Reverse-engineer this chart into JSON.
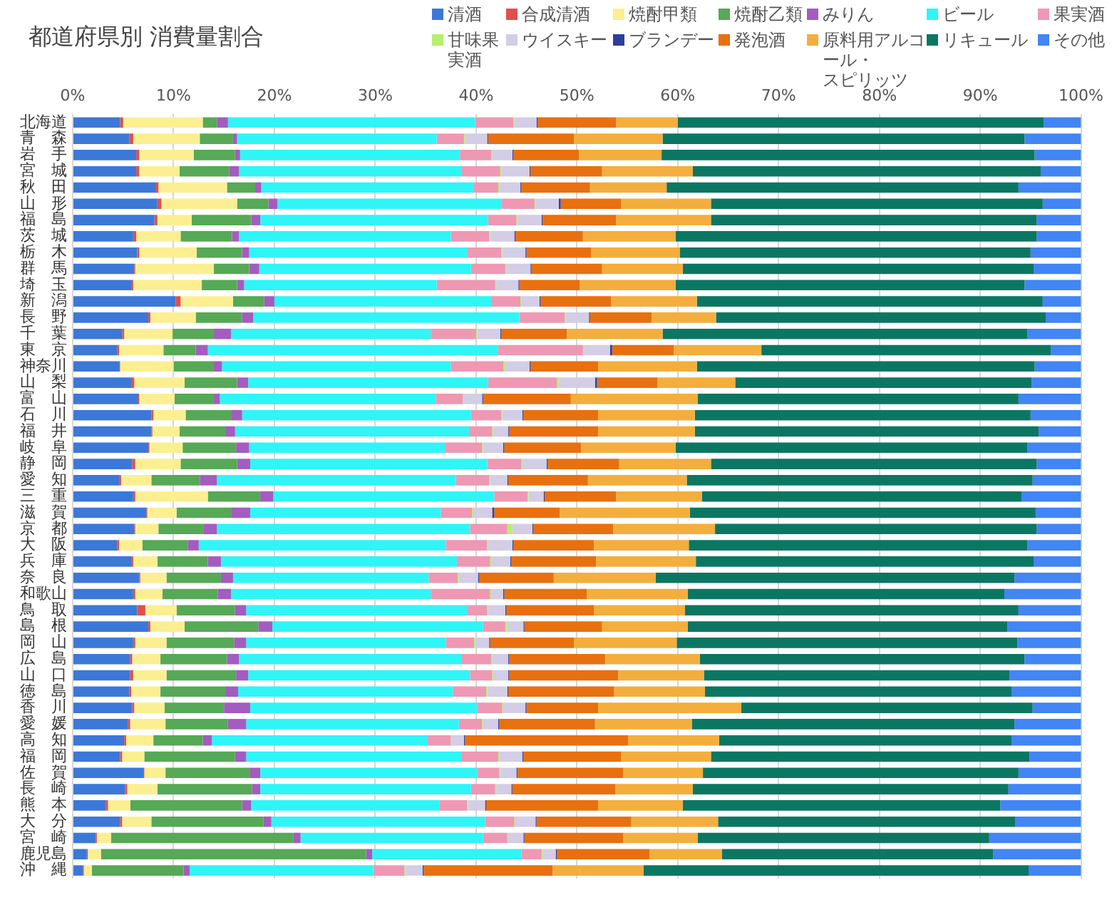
{
  "chart_data": {
    "type": "bar",
    "title": "都道府県別 消費量割合",
    "orientation": "horizontal",
    "stacked": true,
    "categories": [
      "北海道",
      "青　森",
      "岩　手",
      "宮　城",
      "秋　田",
      "山　形",
      "福　島",
      "茨　城",
      "栃　木",
      "群　馬",
      "埼　玉",
      "新　潟",
      "長　野",
      "千　葉",
      "東　京",
      "神奈川",
      "山　梨",
      "富　山",
      "石　川",
      "福　井",
      "岐　阜",
      "静　岡",
      "愛　知",
      "三　重",
      "滋　賀",
      "京　都",
      "大　阪",
      "兵　庫",
      "奈　良",
      "和歌山",
      "鳥　取",
      "島　根",
      "岡　山",
      "広　島",
      "山　口",
      "徳　島",
      "香　川",
      "愛　媛",
      "高　知",
      "福　岡",
      "佐　賀",
      "長　崎",
      "熊　本",
      "大　分",
      "宮　崎",
      "鹿児島",
      "沖　縄"
    ],
    "series": [
      {
        "name": "清酒",
        "color": "#3c78d8",
        "values": [
          4.7,
          5.6,
          6.3,
          6.3,
          8.2,
          8.4,
          8.1,
          6.0,
          6.4,
          6.1,
          5.8,
          10.2,
          7.5,
          4.9,
          4.4,
          4.6,
          5.8,
          6.5,
          7.8,
          7.8,
          7.5,
          5.9,
          4.6,
          6.0,
          7.3,
          6.1,
          4.4,
          5.8,
          6.6,
          6.0,
          6.4,
          7.5,
          6.0,
          5.7,
          5.7,
          5.6,
          5.9,
          5.5,
          5.1,
          4.7,
          7.0,
          5.2,
          3.3,
          4.7,
          2.3,
          1.4,
          1.0
        ]
      },
      {
        "name": "合成清酒",
        "color": "#e0504a",
        "values": [
          0.3,
          0.4,
          0.3,
          0.3,
          0.3,
          0.4,
          0.3,
          0.3,
          0.2,
          0.1,
          0.2,
          0.5,
          0.2,
          0.2,
          0.2,
          0.1,
          0.3,
          0.1,
          0.2,
          0.1,
          0.1,
          0.3,
          0.2,
          0.2,
          0.1,
          0.1,
          0.2,
          0.2,
          0.1,
          0.2,
          0.8,
          0.2,
          0.2,
          0.2,
          0.3,
          0.2,
          0.2,
          0.2,
          0.2,
          0.2,
          0.1,
          0.2,
          0.2,
          0.2,
          0.1,
          0.1,
          0.1
        ]
      },
      {
        "name": "焼酎甲類",
        "color": "#fcef91",
        "values": [
          7.9,
          6.6,
          5.4,
          4.0,
          6.8,
          7.5,
          3.4,
          4.4,
          5.7,
          7.8,
          6.8,
          5.2,
          4.5,
          4.8,
          4.4,
          5.3,
          5.0,
          3.5,
          3.2,
          2.7,
          3.3,
          4.5,
          3.0,
          7.2,
          2.9,
          2.3,
          2.3,
          2.4,
          2.6,
          2.7,
          3.1,
          3.4,
          3.1,
          2.8,
          3.3,
          2.9,
          3.0,
          3.5,
          2.7,
          2.2,
          2.1,
          3.0,
          2.2,
          2.9,
          1.4,
          1.3,
          0.8
        ]
      },
      {
        "name": "焼酎乙類",
        "color": "#56a956",
        "values": [
          1.4,
          3.3,
          4.1,
          4.9,
          2.8,
          3.1,
          5.9,
          5.1,
          4.5,
          3.5,
          3.5,
          3.1,
          4.6,
          4.1,
          3.2,
          4.0,
          5.2,
          3.9,
          4.5,
          4.6,
          5.3,
          5.6,
          4.8,
          5.2,
          5.4,
          4.5,
          4.5,
          5.0,
          5.4,
          5.5,
          5.8,
          7.3,
          6.7,
          6.6,
          6.9,
          6.5,
          5.9,
          6.2,
          4.9,
          9.0,
          8.4,
          9.4,
          11.1,
          11.1,
          18.1,
          26.3,
          9.1
        ]
      },
      {
        "name": "みりん",
        "color": "#a35cc0",
        "values": [
          1.1,
          0.4,
          0.5,
          1.0,
          0.6,
          0.9,
          0.9,
          0.7,
          0.7,
          1.0,
          0.7,
          1.0,
          1.1,
          1.7,
          1.2,
          0.8,
          1.1,
          0.6,
          1.1,
          0.9,
          1.3,
          1.3,
          1.7,
          1.3,
          1.9,
          1.3,
          1.1,
          1.3,
          1.2,
          1.3,
          1.1,
          1.4,
          1.2,
          1.2,
          1.2,
          1.2,
          2.6,
          1.8,
          0.9,
          1.1,
          1.0,
          0.8,
          0.9,
          0.8,
          0.7,
          0.6,
          0.6
        ]
      },
      {
        "name": "ビール",
        "color": "#2ff5f7",
        "values": [
          24.5,
          19.8,
          21.8,
          22.1,
          21.1,
          22.2,
          22.6,
          21.0,
          21.6,
          21.0,
          19.1,
          21.5,
          26.4,
          19.8,
          28.8,
          22.7,
          23.8,
          21.4,
          22.7,
          23.2,
          19.4,
          23.5,
          23.7,
          21.9,
          18.9,
          25.1,
          24.5,
          23.4,
          19.4,
          19.8,
          21.9,
          20.9,
          19.8,
          22.1,
          22.0,
          21.3,
          22.5,
          21.1,
          21.4,
          21.4,
          21.5,
          20.9,
          18.7,
          21.2,
          18.1,
          14.8,
          18.2
        ]
      },
      {
        "name": "果実酒",
        "color": "#ee98b4",
        "values": [
          3.8,
          2.7,
          3.1,
          3.8,
          2.4,
          3.3,
          2.8,
          3.8,
          3.4,
          3.4,
          5.8,
          2.9,
          4.5,
          4.5,
          8.4,
          5.2,
          6.8,
          2.7,
          3.0,
          2.3,
          3.7,
          3.4,
          3.3,
          3.3,
          3.1,
          3.7,
          4.1,
          3.3,
          2.9,
          5.9,
          2.0,
          2.2,
          2.8,
          2.9,
          2.2,
          3.3,
          2.5,
          2.3,
          2.3,
          3.6,
          2.2,
          2.4,
          2.7,
          2.9,
          2.4,
          2.0,
          3.1
        ]
      },
      {
        "name": "甘味果実酒",
        "color": "#b5ef6e",
        "values": [
          0.1,
          0.1,
          0.1,
          0.1,
          0.1,
          0.1,
          0.1,
          0.1,
          0.1,
          0.1,
          0.1,
          0.1,
          0.1,
          0.1,
          0.1,
          0.2,
          0.2,
          0.1,
          0.1,
          0.1,
          0.1,
          0.1,
          0.1,
          0.1,
          0.2,
          0.5,
          0.1,
          0.1,
          0.1,
          0.1,
          0.1,
          0.2,
          0.1,
          0.1,
          0.1,
          0.1,
          0.1,
          0.1,
          0.1,
          0.1,
          0.1,
          0.1,
          0.1,
          0.1,
          0.1,
          0.1,
          0.1
        ]
      },
      {
        "name": "ウイスキー",
        "color": "#d3cde6",
        "values": [
          2.2,
          2.2,
          2.0,
          2.8,
          2.1,
          2.3,
          2.4,
          2.4,
          2.3,
          2.4,
          2.2,
          1.8,
          2.3,
          2.3,
          2.6,
          2.4,
          3.6,
          1.8,
          2.0,
          1.5,
          2.0,
          2.4,
          1.7,
          1.5,
          1.8,
          2.0,
          2.4,
          1.9,
          1.9,
          1.2,
          1.7,
          1.6,
          1.4,
          1.6,
          1.5,
          2.0,
          2.2,
          1.5,
          1.2,
          2.3,
          1.6,
          1.5,
          1.7,
          2.0,
          1.5,
          1.3,
          1.7
        ]
      },
      {
        "name": "ブランデー",
        "color": "#2e3e9e",
        "values": [
          0.1,
          0.1,
          0.1,
          0.1,
          0.1,
          0.2,
          0.1,
          0.1,
          0.1,
          0.1,
          0.1,
          0.1,
          0.1,
          0.1,
          0.2,
          0.1,
          0.2,
          0.1,
          0.1,
          0.1,
          0.1,
          0.1,
          0.1,
          0.1,
          0.2,
          0.1,
          0.1,
          0.1,
          0.1,
          0.1,
          0.1,
          0.1,
          0.1,
          0.1,
          0.1,
          0.1,
          0.1,
          0.1,
          0.1,
          0.1,
          0.1,
          0.1,
          0.1,
          0.1,
          0.1,
          0.1,
          0.1
        ]
      },
      {
        "name": "発泡酒",
        "color": "#e8700f",
        "values": [
          7.8,
          8.5,
          6.5,
          7.1,
          6.8,
          6.0,
          7.3,
          6.7,
          6.4,
          7.0,
          6.0,
          7.0,
          6.1,
          6.5,
          6.1,
          6.7,
          6.0,
          8.7,
          7.4,
          8.8,
          7.6,
          7.1,
          7.9,
          7.1,
          6.5,
          7.9,
          8.0,
          8.4,
          7.4,
          8.2,
          8.7,
          7.7,
          8.3,
          9.5,
          10.8,
          10.5,
          7.1,
          9.5,
          16.2,
          9.7,
          10.5,
          10.2,
          11.1,
          9.4,
          9.8,
          9.2,
          12.8
        ]
      },
      {
        "name": "原料用アルコール・スピリッツ",
        "color": "#f4ae3d",
        "values": [
          6.1,
          8.8,
          8.2,
          9.0,
          7.6,
          8.9,
          9.4,
          9.2,
          8.8,
          8.0,
          9.5,
          8.5,
          6.4,
          9.5,
          8.7,
          9.8,
          7.7,
          12.6,
          9.6,
          9.6,
          9.4,
          9.1,
          9.8,
          8.5,
          12.9,
          10.1,
          9.4,
          9.9,
          10.1,
          10.0,
          9.0,
          8.5,
          10.2,
          9.4,
          8.5,
          9.0,
          14.2,
          9.6,
          9.0,
          8.9,
          7.9,
          7.7,
          8.4,
          8.6,
          7.4,
          7.2,
          9.0
        ]
      },
      {
        "name": "リキュール",
        "color": "#0b7762",
        "values": [
          36.3,
          35.9,
          37.0,
          34.5,
          34.9,
          32.9,
          32.3,
          35.8,
          34.8,
          34.8,
          34.6,
          34.3,
          32.7,
          36.2,
          28.7,
          33.5,
          29.4,
          31.8,
          33.3,
          34.1,
          34.9,
          32.3,
          34.3,
          31.7,
          34.3,
          31.9,
          33.6,
          33.5,
          35.6,
          31.4,
          33.1,
          31.7,
          33.8,
          32.2,
          30.3,
          30.4,
          28.9,
          32.0,
          29.0,
          31.6,
          31.3,
          31.3,
          31.5,
          29.5,
          28.9,
          26.9,
          38.2
        ]
      },
      {
        "name": "その他",
        "color": "#4285f4",
        "values": [
          3.7,
          5.6,
          4.6,
          4.0,
          6.2,
          3.8,
          4.4,
          4.4,
          5.0,
          4.7,
          5.6,
          3.8,
          3.5,
          5.3,
          3.0,
          4.6,
          4.9,
          6.2,
          5.0,
          4.2,
          5.3,
          4.4,
          4.8,
          5.9,
          4.5,
          4.4,
          5.3,
          4.7,
          6.6,
          7.6,
          6.2,
          7.3,
          6.3,
          5.6,
          7.1,
          6.9,
          4.8,
          6.6,
          6.9,
          5.1,
          6.2,
          7.2,
          8.0,
          6.5,
          9.1,
          8.7,
          5.2
        ]
      }
    ],
    "xlim": [
      0,
      100
    ],
    "xticks": [
      {
        "value": 0,
        "label": "0%"
      },
      {
        "value": 10,
        "label": "10%"
      },
      {
        "value": 20,
        "label": "20%"
      },
      {
        "value": 30,
        "label": "30%"
      },
      {
        "value": 40,
        "label": "40%"
      },
      {
        "value": 50,
        "label": "50%"
      },
      {
        "value": 60,
        "label": "60%"
      },
      {
        "value": 70,
        "label": "70%"
      },
      {
        "value": 80,
        "label": "80%"
      },
      {
        "value": 90,
        "label": "90%"
      },
      {
        "value": 100,
        "label": "100%"
      }
    ],
    "grid": "x",
    "legend": "top right"
  }
}
